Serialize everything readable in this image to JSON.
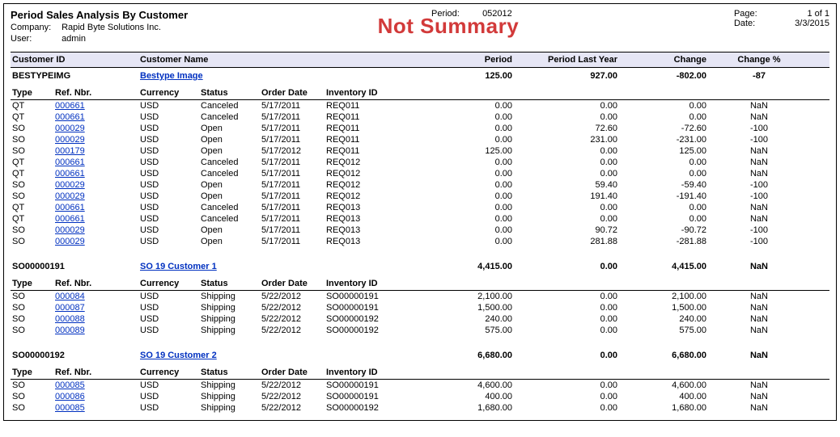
{
  "header": {
    "title": "Period Sales Analysis By Customer",
    "company_label": "Company:",
    "company": "Rapid Byte Solutions Inc.",
    "user_label": "User:",
    "user": "admin",
    "period_label": "Period:",
    "period": "052012",
    "page_label": "Page:",
    "page": "1 of 1",
    "date_label": "Date:",
    "date": "3/3/2015",
    "watermark": "Not Summary"
  },
  "columns": {
    "customer_id": "Customer ID",
    "customer_name": "Customer Name",
    "period": "Period",
    "period_last_year": "Period Last Year",
    "change": "Change",
    "change_pct": "Change %",
    "type": "Type",
    "ref_nbr": "Ref. Nbr.",
    "currency": "Currency",
    "status": "Status",
    "order_date": "Order Date",
    "inventory_id": "Inventory ID"
  },
  "groups": [
    {
      "customer_id": "BESTYPEIMG",
      "customer_name": "Bestype Image",
      "period": "125.00",
      "period_last_year": "927.00",
      "change": "-802.00",
      "change_pct": "-87",
      "rows": [
        {
          "type": "QT",
          "ref": "000661",
          "curr": "USD",
          "status": "Canceled",
          "odate": "5/17/2011",
          "inv": "REQ011",
          "v1": "0.00",
          "v2": "0.00",
          "v3": "0.00",
          "v4": "NaN"
        },
        {
          "type": "QT",
          "ref": "000661",
          "curr": "USD",
          "status": "Canceled",
          "odate": "5/17/2011",
          "inv": "REQ011",
          "v1": "0.00",
          "v2": "0.00",
          "v3": "0.00",
          "v4": "NaN"
        },
        {
          "type": "SO",
          "ref": "000029",
          "curr": "USD",
          "status": "Open",
          "odate": "5/17/2011",
          "inv": "REQ011",
          "v1": "0.00",
          "v2": "72.60",
          "v3": "-72.60",
          "v4": "-100"
        },
        {
          "type": "SO",
          "ref": "000029",
          "curr": "USD",
          "status": "Open",
          "odate": "5/17/2011",
          "inv": "REQ011",
          "v1": "0.00",
          "v2": "231.00",
          "v3": "-231.00",
          "v4": "-100"
        },
        {
          "type": "SO",
          "ref": "000179",
          "curr": "USD",
          "status": "Open",
          "odate": "5/17/2012",
          "inv": "REQ011",
          "v1": "125.00",
          "v2": "0.00",
          "v3": "125.00",
          "v4": "NaN"
        },
        {
          "type": "QT",
          "ref": "000661",
          "curr": "USD",
          "status": "Canceled",
          "odate": "5/17/2011",
          "inv": "REQ012",
          "v1": "0.00",
          "v2": "0.00",
          "v3": "0.00",
          "v4": "NaN"
        },
        {
          "type": "QT",
          "ref": "000661",
          "curr": "USD",
          "status": "Canceled",
          "odate": "5/17/2011",
          "inv": "REQ012",
          "v1": "0.00",
          "v2": "0.00",
          "v3": "0.00",
          "v4": "NaN"
        },
        {
          "type": "SO",
          "ref": "000029",
          "curr": "USD",
          "status": "Open",
          "odate": "5/17/2011",
          "inv": "REQ012",
          "v1": "0.00",
          "v2": "59.40",
          "v3": "-59.40",
          "v4": "-100"
        },
        {
          "type": "SO",
          "ref": "000029",
          "curr": "USD",
          "status": "Open",
          "odate": "5/17/2011",
          "inv": "REQ012",
          "v1": "0.00",
          "v2": "191.40",
          "v3": "-191.40",
          "v4": "-100"
        },
        {
          "type": "QT",
          "ref": "000661",
          "curr": "USD",
          "status": "Canceled",
          "odate": "5/17/2011",
          "inv": "REQ013",
          "v1": "0.00",
          "v2": "0.00",
          "v3": "0.00",
          "v4": "NaN"
        },
        {
          "type": "QT",
          "ref": "000661",
          "curr": "USD",
          "status": "Canceled",
          "odate": "5/17/2011",
          "inv": "REQ013",
          "v1": "0.00",
          "v2": "0.00",
          "v3": "0.00",
          "v4": "NaN"
        },
        {
          "type": "SO",
          "ref": "000029",
          "curr": "USD",
          "status": "Open",
          "odate": "5/17/2011",
          "inv": "REQ013",
          "v1": "0.00",
          "v2": "90.72",
          "v3": "-90.72",
          "v4": "-100"
        },
        {
          "type": "SO",
          "ref": "000029",
          "curr": "USD",
          "status": "Open",
          "odate": "5/17/2011",
          "inv": "REQ013",
          "v1": "0.00",
          "v2": "281.88",
          "v3": "-281.88",
          "v4": "-100"
        }
      ]
    },
    {
      "customer_id": "SO00000191",
      "customer_name": "SO 19 Customer 1",
      "period": "4,415.00",
      "period_last_year": "0.00",
      "change": "4,415.00",
      "change_pct": "NaN",
      "rows": [
        {
          "type": "SO",
          "ref": "000084",
          "curr": "USD",
          "status": "Shipping",
          "odate": "5/22/2012",
          "inv": "SO00000191",
          "v1": "2,100.00",
          "v2": "0.00",
          "v3": "2,100.00",
          "v4": "NaN"
        },
        {
          "type": "SO",
          "ref": "000087",
          "curr": "USD",
          "status": "Shipping",
          "odate": "5/22/2012",
          "inv": "SO00000191",
          "v1": "1,500.00",
          "v2": "0.00",
          "v3": "1,500.00",
          "v4": "NaN"
        },
        {
          "type": "SO",
          "ref": "000088",
          "curr": "USD",
          "status": "Shipping",
          "odate": "5/22/2012",
          "inv": "SO00000192",
          "v1": "240.00",
          "v2": "0.00",
          "v3": "240.00",
          "v4": "NaN"
        },
        {
          "type": "SO",
          "ref": "000089",
          "curr": "USD",
          "status": "Shipping",
          "odate": "5/22/2012",
          "inv": "SO00000192",
          "v1": "575.00",
          "v2": "0.00",
          "v3": "575.00",
          "v4": "NaN"
        }
      ]
    },
    {
      "customer_id": "SO00000192",
      "customer_name": "SO 19 Customer 2",
      "period": "6,680.00",
      "period_last_year": "0.00",
      "change": "6,680.00",
      "change_pct": "NaN",
      "rows": [
        {
          "type": "SO",
          "ref": "000085",
          "curr": "USD",
          "status": "Shipping",
          "odate": "5/22/2012",
          "inv": "SO00000191",
          "v1": "4,600.00",
          "v2": "0.00",
          "v3": "4,600.00",
          "v4": "NaN"
        },
        {
          "type": "SO",
          "ref": "000086",
          "curr": "USD",
          "status": "Shipping",
          "odate": "5/22/2012",
          "inv": "SO00000191",
          "v1": "400.00",
          "v2": "0.00",
          "v3": "400.00",
          "v4": "NaN"
        },
        {
          "type": "SO",
          "ref": "000085",
          "curr": "USD",
          "status": "Shipping",
          "odate": "5/22/2012",
          "inv": "SO00000192",
          "v1": "1,680.00",
          "v2": "0.00",
          "v3": "1,680.00",
          "v4": "NaN"
        }
      ]
    }
  ]
}
